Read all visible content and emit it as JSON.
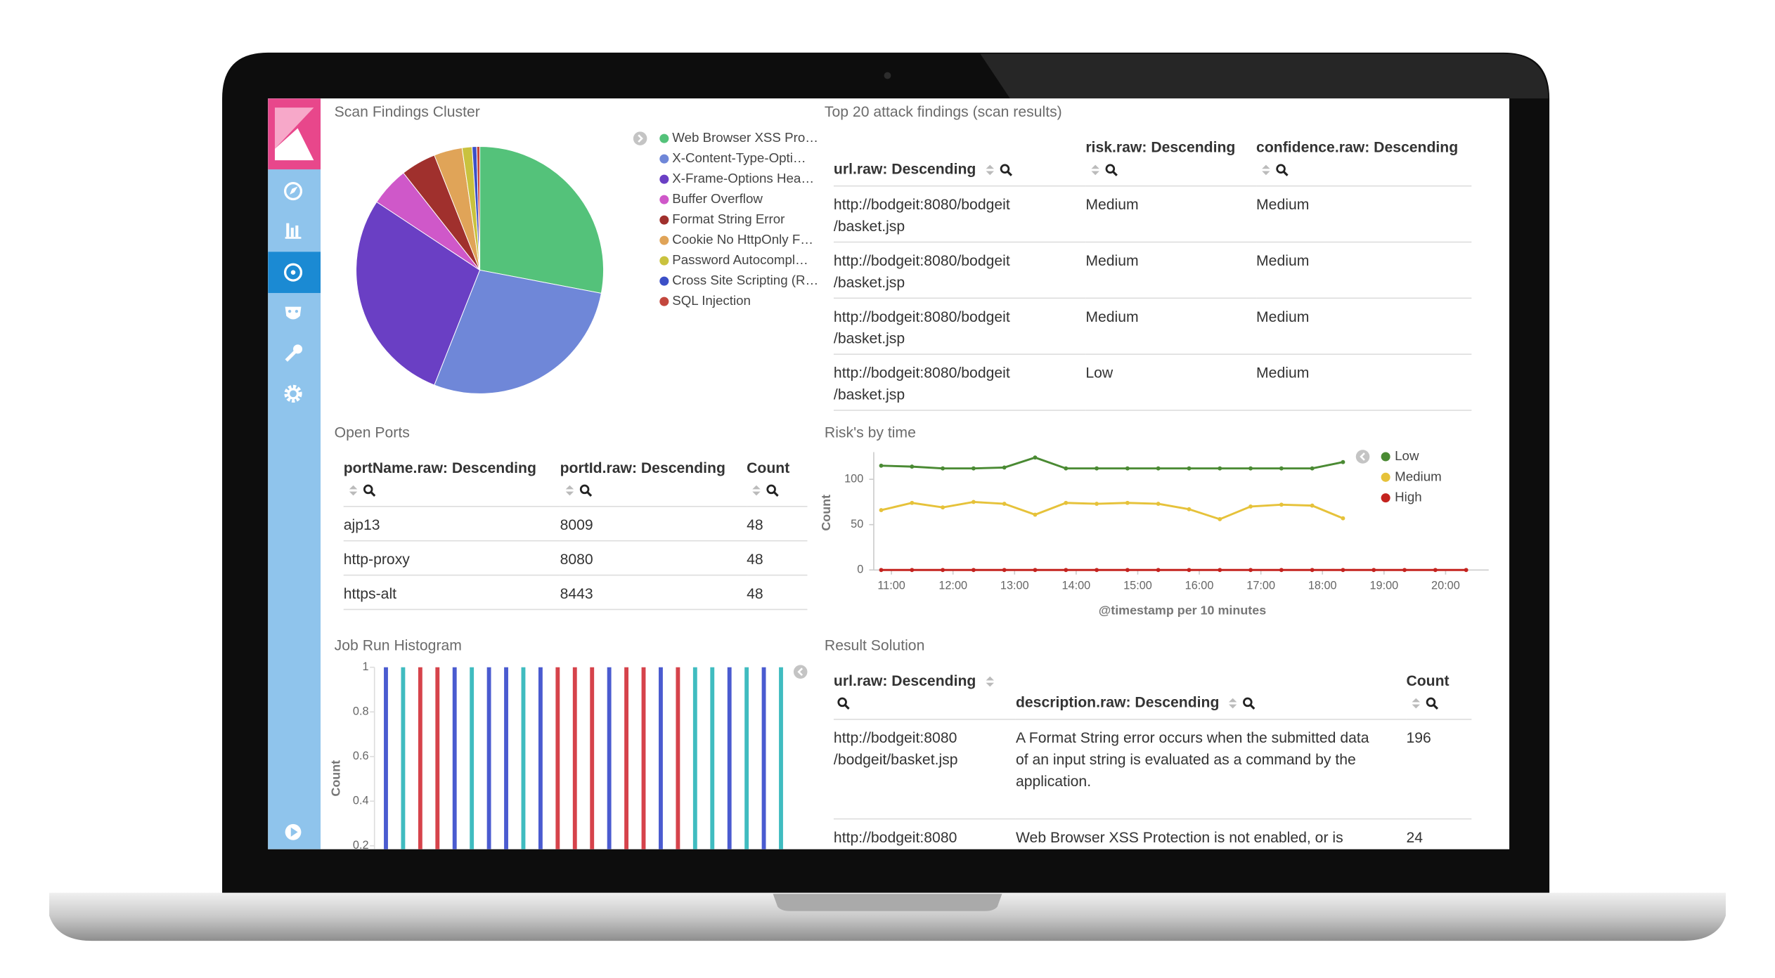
{
  "chart_data": [
    {
      "type": "pie",
      "title": "Scan Findings Cluster",
      "categories": [
        "Web Browser XSS Pro…",
        "X-Content-Type-Opti…",
        "X-Frame-Options Hea…",
        "Buffer Overflow",
        "Format String Error",
        "Cookie No HttpOnly F…",
        "Password Autocompl…",
        "Cross Site Scripting (R…",
        "SQL Injection"
      ],
      "values": [
        28,
        28,
        28.3,
        5.1,
        4.6,
        3.7,
        1.3,
        0.6,
        0.4
      ],
      "colors": [
        "#54c27a",
        "#6f87d8",
        "#6a3fc4",
        "#cf58c9",
        "#a0302d",
        "#e0a458",
        "#c9c23e",
        "#3b4fc7",
        "#c3473d"
      ]
    },
    {
      "type": "line",
      "title": "Risk's by time",
      "x_label": "@timestamp per 10 minutes",
      "y_label": "Count",
      "x": [
        "10:50",
        "11:20",
        "11:50",
        "12:20",
        "12:50",
        "13:20",
        "13:50",
        "14:20",
        "14:50",
        "15:20",
        "15:50",
        "16:20",
        "16:50",
        "17:20",
        "17:50",
        "18:20",
        "18:50",
        "19:20",
        "19:50",
        "20:20"
      ],
      "xlim": [
        "10:45",
        "20:42"
      ],
      "xticks": [
        "11:00",
        "12:00",
        "13:00",
        "14:00",
        "15:00",
        "16:00",
        "17:00",
        "18:00",
        "19:00",
        "20:00"
      ],
      "ylim": [
        0,
        130
      ],
      "yticks": [
        0,
        50,
        100
      ],
      "series": [
        {
          "name": "Low",
          "color": "#4a8a33",
          "values": [
            115,
            114,
            112,
            112,
            113,
            124,
            112,
            112,
            112,
            112,
            112,
            112,
            112,
            112,
            112,
            119,
            null,
            null,
            null,
            null
          ]
        },
        {
          "name": "Medium",
          "color": "#e6c23a",
          "values": [
            66,
            74,
            69,
            75,
            73,
            61,
            74,
            73,
            74,
            73,
            67,
            56,
            70,
            72,
            71,
            57,
            null,
            null,
            null,
            null
          ]
        },
        {
          "name": "High",
          "color": "#c4231f",
          "values": [
            0,
            0,
            0,
            0,
            0,
            0,
            0,
            0,
            0,
            0,
            0,
            0,
            0,
            0,
            0,
            0,
            0,
            0,
            0,
            0
          ]
        }
      ]
    },
    {
      "type": "bar",
      "title": "Job Run Histogram",
      "y_label": "Count",
      "categories": [
        null,
        null,
        null,
        null,
        null,
        null,
        null,
        null,
        null,
        null,
        null,
        null,
        null,
        null,
        null,
        null,
        null,
        null,
        null,
        null,
        null,
        null,
        null,
        null
      ],
      "values": [
        1,
        1,
        1,
        1,
        1,
        1,
        1,
        1,
        1,
        1,
        1,
        1,
        1,
        1,
        1,
        1,
        1,
        1,
        1,
        1,
        1,
        1,
        1,
        1
      ],
      "colors": [
        "#4a5bd0",
        "#40bcc0",
        "#d6434b",
        "#d6434b",
        "#4a5bd0",
        "#40bcc0",
        "#4a5bd0",
        "#4a5bd0",
        "#40bcc0",
        "#4a5bd0",
        "#d6434b",
        "#d6434b",
        "#d6434b",
        "#4a5bd0",
        "#d6434b",
        "#d6434b",
        "#4a5bd0",
        "#d6434b",
        "#40bcc0",
        "#40bcc0",
        "#4a5bd0",
        "#40bcc0",
        "#4a5bd0",
        "#40bcc0"
      ],
      "ylim": [
        0,
        1
      ],
      "yticks": [
        0.2,
        0.4,
        0.6,
        0.8,
        1
      ]
    }
  ],
  "tables": [
    {
      "title": "Top 20 attack findings (scan results)",
      "headers": [
        "url.raw: Descending",
        "risk.raw: Descending",
        "confidence.raw: Descending"
      ],
      "rows": [
        [
          "http://bodgeit:8080/bodgeit\n/basket.jsp",
          "Medium",
          "Medium"
        ],
        [
          "http://bodgeit:8080/bodgeit\n/basket.jsp",
          "Medium",
          "Medium"
        ],
        [
          "http://bodgeit:8080/bodgeit\n/basket.jsp",
          "Medium",
          "Medium"
        ],
        [
          "http://bodgeit:8080/bodgeit\n/basket.jsp",
          "Low",
          "Medium"
        ]
      ]
    },
    {
      "title": "Open Ports",
      "headers": [
        "portName.raw: Descending",
        "portId.raw: Descending",
        "Count"
      ],
      "rows": [
        [
          "ajp13",
          8009,
          48
        ],
        [
          "http-proxy",
          8080,
          48
        ],
        [
          "https-alt",
          8443,
          48
        ]
      ]
    },
    {
      "title": "Result Solution",
      "headers": [
        "url.raw: Descending",
        "description.raw: Descending",
        "Count"
      ],
      "rows": [
        [
          "http://bodgeit:8080\n/bodgeit/basket.jsp",
          "A Format String error occurs when the submitted data of an input string is evaluated as a command by the application.",
          196
        ],
        [
          "http://bodgeit:8080",
          "Web Browser XSS Protection is not enabled, or is",
          24
        ]
      ]
    }
  ]
}
